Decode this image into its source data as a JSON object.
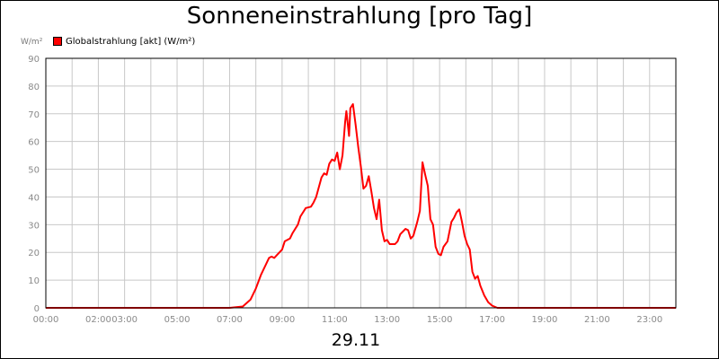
{
  "chart_data": {
    "type": "line",
    "title": "Sonneneinstrahlung [pro Tag]",
    "ylabel": "W/m²",
    "xlabel": "29.11",
    "ylim": [
      0,
      90
    ],
    "xlim": [
      0,
      24
    ],
    "grid": true,
    "legend_position": "top-left",
    "yticks": [
      0,
      10,
      20,
      30,
      40,
      50,
      60,
      70,
      80,
      90
    ],
    "xticks": [
      {
        "at": 0,
        "label": "00:00"
      },
      {
        "at": 2,
        "label": "02:00"
      },
      {
        "at": 3,
        "label": "03:00"
      },
      {
        "at": 5,
        "label": "05:00"
      },
      {
        "at": 7,
        "label": "07:00"
      },
      {
        "at": 9,
        "label": "09:00"
      },
      {
        "at": 11,
        "label": "11:00"
      },
      {
        "at": 13,
        "label": "13:00"
      },
      {
        "at": 15,
        "label": "15:00"
      },
      {
        "at": 17,
        "label": "17:00"
      },
      {
        "at": 19,
        "label": "19:00"
      },
      {
        "at": 21,
        "label": "21:00"
      },
      {
        "at": 23,
        "label": "23:00"
      }
    ],
    "series": [
      {
        "name": "Globalstrahlung [akt] (W/m²)",
        "color": "#ff0000",
        "points": [
          [
            0,
            0
          ],
          [
            7.0,
            0
          ],
          [
            7.5,
            0.5
          ],
          [
            7.8,
            3
          ],
          [
            8.0,
            7
          ],
          [
            8.2,
            12
          ],
          [
            8.4,
            16
          ],
          [
            8.5,
            18
          ],
          [
            8.6,
            18.5
          ],
          [
            8.7,
            18
          ],
          [
            8.8,
            19
          ],
          [
            9.0,
            21
          ],
          [
            9.1,
            24
          ],
          [
            9.3,
            25
          ],
          [
            9.4,
            27
          ],
          [
            9.6,
            30
          ],
          [
            9.7,
            33
          ],
          [
            9.9,
            36
          ],
          [
            10.1,
            36.5
          ],
          [
            10.2,
            38
          ],
          [
            10.3,
            40
          ],
          [
            10.5,
            47
          ],
          [
            10.6,
            48.5
          ],
          [
            10.7,
            48
          ],
          [
            10.8,
            52
          ],
          [
            10.9,
            53.5
          ],
          [
            11.0,
            53
          ],
          [
            11.1,
            56
          ],
          [
            11.2,
            50
          ],
          [
            11.3,
            55
          ],
          [
            11.4,
            67
          ],
          [
            11.45,
            71
          ],
          [
            11.55,
            62
          ],
          [
            11.6,
            72
          ],
          [
            11.7,
            73.5
          ],
          [
            11.8,
            66
          ],
          [
            11.9,
            58
          ],
          [
            12.0,
            51
          ],
          [
            12.1,
            43
          ],
          [
            12.2,
            44
          ],
          [
            12.3,
            47.5
          ],
          [
            12.4,
            42
          ],
          [
            12.5,
            36
          ],
          [
            12.6,
            32
          ],
          [
            12.7,
            39
          ],
          [
            12.8,
            28
          ],
          [
            12.9,
            24
          ],
          [
            13.0,
            24.5
          ],
          [
            13.1,
            23
          ],
          [
            13.3,
            23
          ],
          [
            13.4,
            24
          ],
          [
            13.5,
            26.5
          ],
          [
            13.7,
            28.5
          ],
          [
            13.8,
            28
          ],
          [
            13.9,
            25
          ],
          [
            14.0,
            26
          ],
          [
            14.15,
            31
          ],
          [
            14.25,
            35
          ],
          [
            14.35,
            52.5
          ],
          [
            14.45,
            48
          ],
          [
            14.55,
            44
          ],
          [
            14.6,
            38
          ],
          [
            14.65,
            32
          ],
          [
            14.75,
            30
          ],
          [
            14.85,
            22
          ],
          [
            14.95,
            19.5
          ],
          [
            15.05,
            19
          ],
          [
            15.15,
            22
          ],
          [
            15.3,
            24
          ],
          [
            15.45,
            31
          ],
          [
            15.55,
            32.5
          ],
          [
            15.65,
            34.5
          ],
          [
            15.75,
            35.5
          ],
          [
            15.85,
            31
          ],
          [
            15.95,
            26
          ],
          [
            16.05,
            23
          ],
          [
            16.15,
            21
          ],
          [
            16.25,
            13
          ],
          [
            16.35,
            10.5
          ],
          [
            16.45,
            11.5
          ],
          [
            16.55,
            8
          ],
          [
            16.7,
            4.5
          ],
          [
            16.85,
            2
          ],
          [
            17.0,
            0.8
          ],
          [
            17.2,
            0
          ],
          [
            24,
            0
          ]
        ]
      }
    ]
  }
}
